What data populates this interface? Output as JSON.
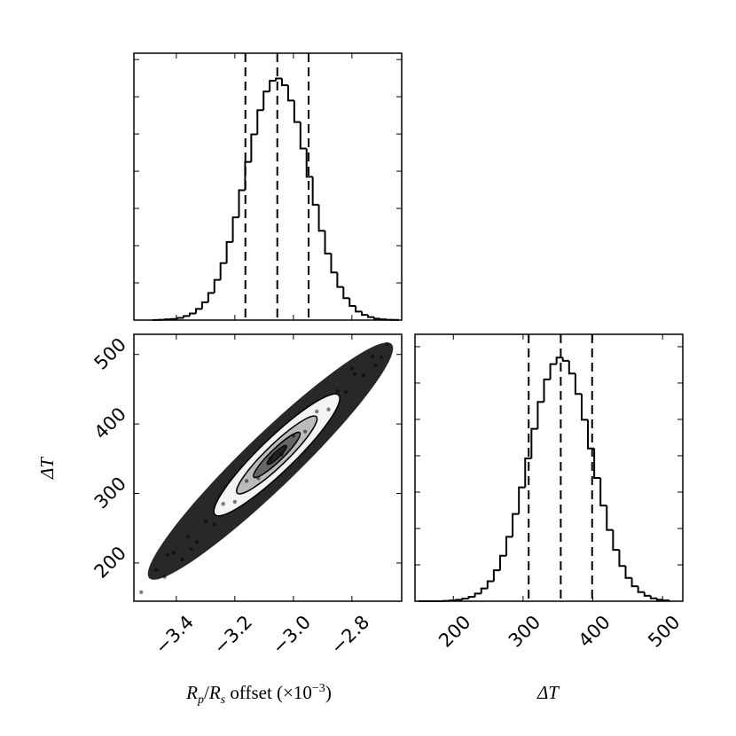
{
  "chart_data": [
    {
      "type": "histogram",
      "bins": [
        -3.48,
        -3.459,
        -3.438,
        -3.417,
        -3.396,
        -3.375,
        -3.354,
        -3.333,
        -3.312,
        -3.291,
        -3.27,
        -3.249,
        -3.228,
        -3.207,
        -3.186,
        -3.165,
        -3.144,
        -3.123,
        -3.102,
        -3.081,
        -3.06,
        -3.039,
        -3.018,
        -2.997,
        -2.976,
        -2.955,
        -2.934,
        -2.913,
        -2.892,
        -2.871,
        -2.85,
        -2.829,
        -2.808,
        -2.787,
        -2.766,
        -2.745,
        -2.724,
        -2.703,
        -2.682,
        -2.661,
        -2.64
      ],
      "values": [
        0.004,
        0.01,
        0.02,
        0.03,
        0.06,
        0.11,
        0.18,
        0.3,
        0.48,
        0.73,
        1.08,
        1.53,
        2.1,
        2.76,
        3.49,
        4.25,
        4.99,
        5.64,
        6.14,
        6.43,
        6.49,
        6.31,
        5.9,
        5.32,
        4.61,
        3.85,
        3.1,
        2.4,
        1.79,
        1.28,
        0.89,
        0.59,
        0.38,
        0.23,
        0.14,
        0.08,
        0.04,
        0.02,
        0.01,
        0.005
      ],
      "quantiles": [
        -3.164,
        -3.055,
        -2.948
      ],
      "xlim": [
        -3.545,
        -2.63
      ],
      "xticks": [
        {
          "value": -3.4,
          "label": "−3.4"
        },
        {
          "value": -3.2,
          "label": "−3.2"
        },
        {
          "value": -3.0,
          "label": "−3.0"
        },
        {
          "value": -2.8,
          "label": "−2.8"
        }
      ],
      "ylim": [
        0,
        7.17
      ],
      "yticks": [
        1,
        2,
        3,
        4,
        5,
        6,
        7
      ],
      "color": "#000000"
    },
    {
      "type": "scatter",
      "x": [
        -3.52,
        -3.47,
        -3.44,
        -3.41,
        -3.38,
        -3.36,
        -3.33,
        -3.3,
        -3.27,
        -3.24,
        -3.2,
        -3.16,
        -3.12,
        -3.08,
        -3.04,
        -3,
        -2.96,
        -2.92,
        -2.88,
        -2.85,
        -2.82,
        -2.79,
        -2.76,
        -2.73,
        -2.7,
        -2.68,
        -3.43,
        -3.35,
        -2.8,
        -2.72
      ],
      "values": [
        158,
        190,
        180,
        215,
        205,
        238,
        230,
        260,
        255,
        285,
        288,
        318,
        322,
        350,
        356,
        383,
        389,
        418,
        421,
        447,
        446,
        472,
        470,
        497,
        496,
        515,
        212,
        220,
        480,
        484
      ],
      "xlim": [
        -3.545,
        -2.63
      ],
      "xticks": [
        {
          "value": -3.4,
          "label": "−3.4"
        },
        {
          "value": -3.2,
          "label": "−3.2"
        },
        {
          "value": -3.0,
          "label": "−3.0"
        },
        {
          "value": -2.8,
          "label": "−2.8"
        }
      ],
      "ylim": [
        145,
        529
      ],
      "yticks": [
        200,
        300,
        400,
        500
      ],
      "xlabel_parts": [
        "R",
        "p",
        "/",
        "R",
        "s",
        " offset (×10",
        "−3",
        ")"
      ],
      "ylabel": "ΔT",
      "color": "#000000"
    },
    {
      "type": "histogram",
      "bins": [
        150,
        159,
        168,
        177,
        186,
        195,
        204,
        213,
        222,
        231,
        240,
        249,
        258,
        267,
        276,
        285,
        294,
        303,
        312,
        321,
        330,
        339,
        348,
        357,
        366,
        375,
        384,
        393,
        402,
        411,
        420,
        429,
        438,
        447,
        456,
        465,
        474,
        483,
        492,
        501,
        510
      ],
      "values": [
        0,
        0,
        0,
        0,
        0.01,
        0.02,
        0.04,
        0.07,
        0.12,
        0.21,
        0.35,
        0.55,
        0.85,
        1.25,
        1.77,
        2.4,
        3.13,
        3.93,
        4.74,
        5.48,
        6.1,
        6.52,
        6.7,
        6.61,
        6.26,
        5.7,
        4.99,
        4.2,
        3.39,
        2.63,
        1.96,
        1.41,
        0.97,
        0.64,
        0.41,
        0.25,
        0.15,
        0.08,
        0.04,
        0.02
      ],
      "quantiles": [
        308,
        354,
        399
      ],
      "xlim": [
        145,
        529
      ],
      "xticks": [
        200,
        300,
        400,
        500
      ],
      "ylim": [
        0,
        7.34
      ],
      "yticks": [
        1,
        2,
        3,
        4,
        5,
        6,
        7
      ],
      "xlabel": "ΔT",
      "color": "#000000"
    }
  ]
}
